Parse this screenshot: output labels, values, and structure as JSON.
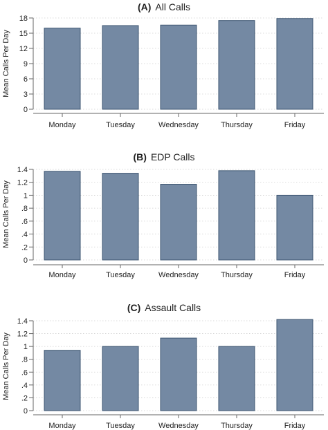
{
  "colors": {
    "bar_fill": "#7489a3",
    "bar_stroke": "#3d5570",
    "grid": "#cfcfcf",
    "axis": "#666666",
    "text": "#222222"
  },
  "chart_data": [
    {
      "type": "bar",
      "panel_label": "(A)",
      "title": "All Calls",
      "ylabel": "Mean Calls Per Day",
      "xlabel": "",
      "categories": [
        "Monday",
        "Tuesday",
        "Wednesday",
        "Thursday",
        "Friday"
      ],
      "values": [
        16.0,
        16.5,
        16.6,
        17.5,
        17.9
      ],
      "ylim": [
        0,
        18
      ],
      "yticks": [
        0,
        3,
        6,
        9,
        12,
        15,
        18
      ],
      "ytick_labels": [
        "0",
        "3",
        "6",
        "9",
        "12",
        "15",
        "18"
      ],
      "grid": true
    },
    {
      "type": "bar",
      "panel_label": "(B)",
      "title": "EDP Calls",
      "ylabel": "Mean Calls Per Day",
      "xlabel": "",
      "categories": [
        "Monday",
        "Tuesday",
        "Wednesday",
        "Thursday",
        "Friday"
      ],
      "values": [
        1.37,
        1.34,
        1.17,
        1.38,
        1.0
      ],
      "ylim": [
        0,
        1.4
      ],
      "yticks": [
        0,
        0.2,
        0.4,
        0.6,
        0.8,
        1.0,
        1.2,
        1.4
      ],
      "ytick_labels": [
        "0",
        ".2",
        ".4",
        ".6",
        ".8",
        "1",
        "1.2",
        "1.4"
      ],
      "grid": true
    },
    {
      "type": "bar",
      "panel_label": "(C)",
      "title": "Assault Calls",
      "ylabel": "Mean Calls Per Day",
      "xlabel": "",
      "categories": [
        "Monday",
        "Tuesday",
        "Wednesday",
        "Thursday",
        "Friday"
      ],
      "values": [
        0.94,
        1.0,
        1.13,
        1.0,
        1.42
      ],
      "ylim": [
        0,
        1.4
      ],
      "yticks": [
        0,
        0.2,
        0.4,
        0.6,
        0.8,
        1.0,
        1.2,
        1.4
      ],
      "ytick_labels": [
        "0",
        ".2",
        ".4",
        ".6",
        ".8",
        "1",
        "1.2",
        "1.4"
      ],
      "grid": true
    }
  ]
}
